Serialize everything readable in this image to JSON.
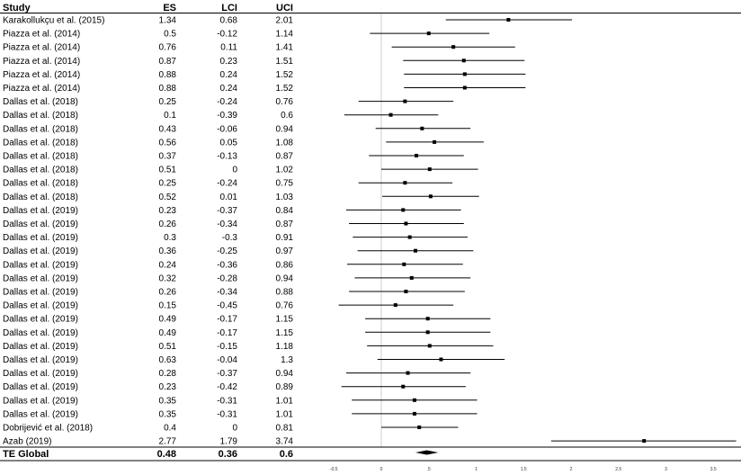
{
  "chart_data": {
    "type": "forest",
    "headers": {
      "study": "Study",
      "es": "ES",
      "lci": "LCI",
      "uci": "UCI"
    },
    "rows": [
      {
        "study": "Karakollukçu et al. (2015)",
        "es": "1.34",
        "lci": "0.68",
        "uci": "2.01"
      },
      {
        "study": "Piazza et al. (2014)",
        "es": "0.5",
        "lci": "-0.12",
        "uci": "1.14"
      },
      {
        "study": "Piazza et al. (2014)",
        "es": "0.76",
        "lci": "0.11",
        "uci": "1.41"
      },
      {
        "study": "Piazza et al. (2014)",
        "es": "0.87",
        "lci": "0.23",
        "uci": "1.51"
      },
      {
        "study": "Piazza et al. (2014)",
        "es": "0.88",
        "lci": "0.24",
        "uci": "1.52"
      },
      {
        "study": "Piazza et al. (2014)",
        "es": "0.88",
        "lci": "0.24",
        "uci": "1.52"
      },
      {
        "study": "Dallas et al. (2018)",
        "es": "0.25",
        "lci": "-0.24",
        "uci": "0.76"
      },
      {
        "study": "Dallas et al. (2018)",
        "es": "0.1",
        "lci": "-0.39",
        "uci": "0.6"
      },
      {
        "study": "Dallas et al. (2018)",
        "es": "0.43",
        "lci": "-0.06",
        "uci": "0.94"
      },
      {
        "study": "Dallas et al. (2018)",
        "es": "0.56",
        "lci": "0.05",
        "uci": "1.08"
      },
      {
        "study": "Dallas et al. (2018)",
        "es": "0.37",
        "lci": "-0.13",
        "uci": "0.87"
      },
      {
        "study": "Dallas et al. (2018)",
        "es": "0.51",
        "lci": "0",
        "uci": "1.02"
      },
      {
        "study": "Dallas et al. (2018)",
        "es": "0.25",
        "lci": "-0.24",
        "uci": "0.75"
      },
      {
        "study": "Dallas et al. (2018)",
        "es": "0.52",
        "lci": "0.01",
        "uci": "1.03"
      },
      {
        "study": "Dallas et al. (2019)",
        "es": "0.23",
        "lci": "-0.37",
        "uci": "0.84"
      },
      {
        "study": "Dallas et al. (2019)",
        "es": "0.26",
        "lci": "-0.34",
        "uci": "0.87"
      },
      {
        "study": "Dallas et al. (2019)",
        "es": "0.3",
        "lci": "-0.3",
        "uci": "0.91"
      },
      {
        "study": "Dallas et al. (2019)",
        "es": "0.36",
        "lci": "-0.25",
        "uci": "0.97"
      },
      {
        "study": "Dallas et al. (2019)",
        "es": "0.24",
        "lci": "-0.36",
        "uci": "0.86"
      },
      {
        "study": "Dallas et al. (2019)",
        "es": "0.32",
        "lci": "-0.28",
        "uci": "0.94"
      },
      {
        "study": "Dallas et al. (2019)",
        "es": "0.26",
        "lci": "-0.34",
        "uci": "0.88"
      },
      {
        "study": "Dallas et al. (2019)",
        "es": "0.15",
        "lci": "-0.45",
        "uci": "0.76"
      },
      {
        "study": "Dallas et al. (2019)",
        "es": "0.49",
        "lci": "-0.17",
        "uci": "1.15"
      },
      {
        "study": "Dallas et al. (2019)",
        "es": "0.49",
        "lci": "-0.17",
        "uci": "1.15"
      },
      {
        "study": "Dallas et al. (2019)",
        "es": "0.51",
        "lci": "-0.15",
        "uci": "1.18"
      },
      {
        "study": "Dallas et al. (2019)",
        "es": "0.63",
        "lci": "-0.04",
        "uci": "1.3"
      },
      {
        "study": "Dallas et al. (2019)",
        "es": "0.28",
        "lci": "-0.37",
        "uci": "0.94"
      },
      {
        "study": "Dallas et al. (2019)",
        "es": "0.23",
        "lci": "-0.42",
        "uci": "0.89"
      },
      {
        "study": "Dallas et al. (2019)",
        "es": "0.35",
        "lci": "-0.31",
        "uci": "1.01"
      },
      {
        "study": "Dallas et al. (2019)",
        "es": "0.35",
        "lci": "-0.31",
        "uci": "1.01"
      },
      {
        "study": "Dobrijević et al. (2018)",
        "es": "0.4",
        "lci": "0",
        "uci": "0.81"
      },
      {
        "study": "Azab (2019)",
        "es": "2.77",
        "lci": "1.79",
        "uci": "3.74"
      }
    ],
    "summary": {
      "study": "TE Global",
      "es": "0.48",
      "lci": "0.36",
      "uci": "0.6"
    },
    "x_ticks": [
      "-0.5",
      "0",
      ".5",
      "1",
      "1.5",
      "2",
      "2.5",
      "3",
      "3.5"
    ],
    "xlim": [
      -0.5,
      3.75
    ],
    "reference_line": 0,
    "grid": false,
    "colors": {
      "marks": "#000000",
      "reference": "#cccccc"
    }
  }
}
